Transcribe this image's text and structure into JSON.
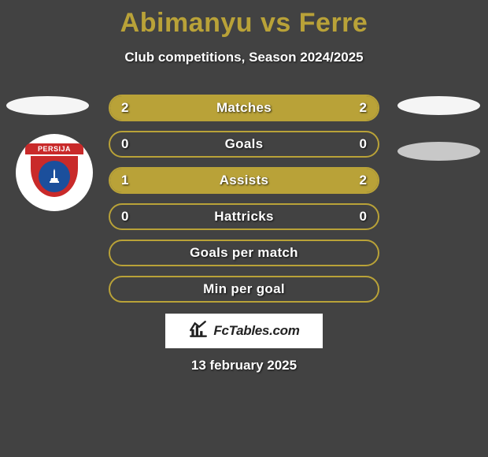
{
  "colors": {
    "background": "#424242",
    "title": "#b9a238",
    "subtitle": "#ffffff",
    "bar_border": "#b9a238",
    "bar_fill": "#b9a238",
    "bar_label": "#ffffff",
    "bar_value": "#ffffff",
    "side_oval_white": "#ffffff",
    "side_oval_gray": "#d0d0d0",
    "crest_red": "#c92a2a",
    "crest_blue": "#1b4f9c",
    "crest_inner_white": "#ffffff",
    "date": "#ffffff"
  },
  "title": {
    "left": "Abimanyu",
    "vs": "vs",
    "right": "Ferre"
  },
  "subtitle": "Club competitions, Season 2024/2025",
  "crest_text": "PERSIJA",
  "bars": [
    {
      "label": "Matches",
      "left": "2",
      "right": "2",
      "left_pct": 50,
      "right_pct": 50
    },
    {
      "label": "Goals",
      "left": "0",
      "right": "0",
      "left_pct": 0,
      "right_pct": 0
    },
    {
      "label": "Assists",
      "left": "1",
      "right": "2",
      "left_pct": 33,
      "right_pct": 67
    },
    {
      "label": "Hattricks",
      "left": "0",
      "right": "0",
      "left_pct": 0,
      "right_pct": 0
    },
    {
      "label": "Goals per match",
      "left": "",
      "right": "",
      "left_pct": 0,
      "right_pct": 0
    },
    {
      "label": "Min per goal",
      "left": "",
      "right": "",
      "left_pct": 0,
      "right_pct": 0
    }
  ],
  "fctables_text": "FcTables.com",
  "date": "13 february 2025"
}
